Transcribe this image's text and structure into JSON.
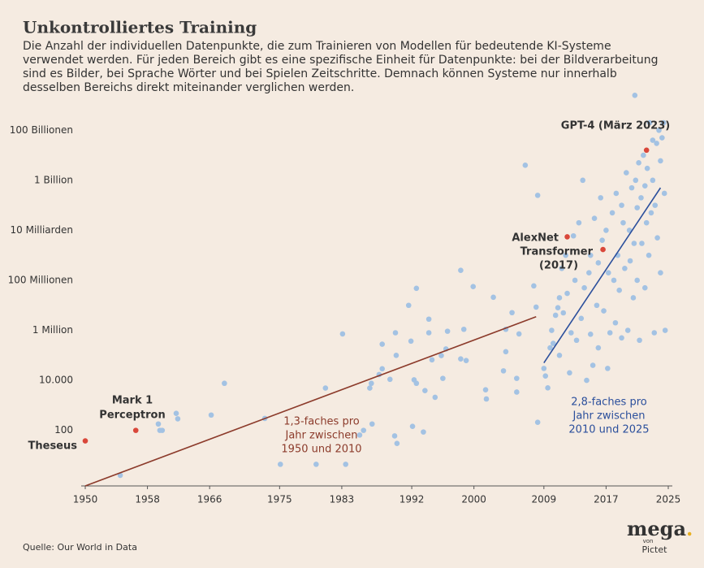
{
  "chart_data": {
    "type": "scatter",
    "title": "Unkontrolliertes Training",
    "subtitle": [
      "Die Anzahl der individuellen Datenpunkte, die zum Trainieren von Modellen für bedeutende KI-Systeme",
      "verwendet werden. Für jeden Bereich gibt es eine spezifische Einheit für Datenpunkte: bei der Bildverarbeitung",
      "sind es Bilder, bei  Sprache Wörter und bei Spielen Zeitschritte. Demnach können Systeme nur innerhalb",
      "desselben Bereichs direkt miteinander verglichen werden."
    ],
    "source": "Quelle: Our World in Data",
    "logo": {
      "word": "mega",
      "dot": ".",
      "by": "von",
      "brand": "Pictet"
    },
    "log_y": true,
    "xlim": [
      1950,
      2025
    ],
    "xticks": [
      1950,
      1958,
      1966,
      1975,
      1983,
      1992,
      2000,
      2009,
      2017,
      2025
    ],
    "ylim": [
      0.6,
      4000000000000000.0
    ],
    "yticks": [
      100,
      {
        "value": 10000,
        "label": "10.000"
      },
      {
        "value": 1000000,
        "label": "1 Million"
      },
      {
        "value": 100000000,
        "label": "100 Millionen"
      },
      {
        "value": 10000000000,
        "label": "10 Milliarden"
      },
      {
        "value": 1000000000000,
        "label": "1 Billion"
      },
      {
        "value": 100000000000000,
        "label": "100 Billionen"
      }
    ],
    "series": [
      {
        "color": "#a3c2e3",
        "x": [
          1954.5,
          1959.4,
          1959.6,
          1959.9,
          1961.7,
          1961.9,
          1966.2,
          1967.9,
          1973.1,
          1975.1,
          1979.7,
          1983.5,
          1980.9,
          1983.1,
          1985.3,
          1985.8,
          1986.9,
          1986.6,
          1986.8,
          1987.8,
          1988.2,
          1988.2,
          1989.2,
          1989.9,
          1990,
          1989.8,
          1990.1,
          1991.6,
          1991.9,
          1992.1,
          1992.3,
          1992.6,
          1992.6,
          1993.5,
          1993.7,
          1994.2,
          1994.2,
          1994.6,
          1995,
          1995.8,
          1996,
          1996.4,
          1996.6,
          1998.3,
          1998.3,
          1998.7,
          1999,
          1999.9,
          2001.5,
          2001.6,
          2002.5,
          2003.8,
          2004.1,
          2004.1,
          2004.9,
          2005.5,
          2005.5,
          2005.8,
          2006.6,
          2007.7,
          2008,
          2008.2,
          2008.2,
          2009,
          2009.2,
          2009.5,
          2009.8,
          2010,
          2010.2,
          2010.5,
          2010.8,
          2011,
          2011,
          2011.3,
          2011.5,
          2011.8,
          2012,
          2012.3,
          2012.5,
          2012.8,
          2013,
          2013.2,
          2013.5,
          2013.8,
          2014,
          2014.2,
          2014.5,
          2014.8,
          2015,
          2015,
          2015.3,
          2015.5,
          2015.8,
          2016,
          2016,
          2016.3,
          2016.5,
          2016.7,
          2017,
          2017.2,
          2017.3,
          2017.5,
          2017.8,
          2018,
          2018.2,
          2018.3,
          2018.5,
          2018.7,
          2019,
          2019,
          2019.2,
          2019.4,
          2019.6,
          2019.8,
          2020,
          2020.1,
          2020.3,
          2020.5,
          2020.6,
          2020.7,
          2020.8,
          2021,
          2021,
          2021.2,
          2021.3,
          2021.5,
          2021.6,
          2021.8,
          2022,
          2022,
          2022.2,
          2022.3,
          2022.5,
          2022.6,
          2022.8,
          2023,
          2023,
          2023.2,
          2023.3,
          2023.5,
          2023.6,
          2023.8,
          2024,
          2024,
          2024.2,
          2024.4,
          2024.5,
          2024.6
        ],
        "values": [
          1.6,
          180,
          100,
          100,
          480,
          290,
          410,
          7600,
          300,
          4.4,
          4.4,
          4.4,
          4900,
          720000,
          65,
          100,
          180,
          4900,
          7600,
          17000,
          29000,
          280000,
          11000,
          800000,
          100000,
          60,
          30,
          10000000,
          370000,
          145,
          10500,
          7600,
          48000000,
          86,
          3900,
          2800000,
          800000,
          66000,
          2100,
          98000,
          12000,
          180000,
          920000,
          250000000,
          72000,
          1100000,
          62000,
          56000000,
          4200,
          1800,
          21000000,
          24000,
          140000,
          1100000,
          5100000,
          12000,
          3400,
          720000,
          4000000000000.0,
          60000000.0,
          8500000.0,
          250000000000.0,
          210,
          30000.0,
          15000.0,
          5000.0,
          200000.0,
          1000000.0,
          300000.0,
          4000000.0,
          8000000.0,
          20000000.0,
          100000.0,
          300000000.0,
          5000000.0,
          1000000000.0,
          30000000.0,
          20000.0,
          800000.0,
          6000000000.0,
          100000000.0,
          400000.0,
          20000000000.0,
          3000000.0,
          1000000000000.0,
          50000000.0,
          10000.0,
          200000000.0,
          700000.0,
          1000000000.0,
          40000.0,
          30000000000.0,
          10000000.0,
          200000.0,
          500000000.0,
          200000000000.0,
          4000000000.0,
          6000000.0,
          10000000000.0,
          30000.0,
          200000000.0,
          800000.0,
          50000000000.0,
          100000000.0,
          2000000.0,
          300000000000.0,
          1000000000.0,
          40000000.0,
          100000000000.0,
          500000.0,
          20000000000.0,
          300000000.0,
          2000000000000.0,
          1000000.0,
          10000000000.0,
          600000000.0,
          500000000000.0,
          20000000.0,
          3000000000.0,
          2500000000000000.0,
          1000000000000.0,
          80000000000.0,
          100000000.0,
          5000000000000.0,
          400000.0,
          200000000000.0,
          3000000000.0,
          10000000000000.0,
          600000000000.0,
          50000000.0,
          20000000000.0,
          3000000000000.0,
          1000000000.0,
          200000000000000.0,
          50000000000.0,
          1000000000000.0,
          40000000000000.0,
          800000.0,
          100000000000.0,
          30000000000000.0,
          5000000000.0,
          100000000000000.0,
          6000000000000.0,
          200000000.0,
          50000000000000.0,
          200000000000000.0,
          300000000000.0,
          1000000.0
        ]
      }
    ],
    "highlights": {
      "color": "#d9473a",
      "x": [
        1950,
        1956.5,
        2012,
        2016.6,
        2022.2
      ],
      "values": [
        38,
        100,
        5500000000.0,
        1700000000.0,
        16000000000000.0
      ],
      "labels": [
        [
          "Theseus"
        ],
        [
          "Mark 1",
          "Perceptron"
        ],
        [
          "AlexNet"
        ],
        [
          "Transformer",
          "(2017)"
        ],
        [
          "GPT-4 (März 2023)"
        ]
      ]
    },
    "trend_lines": [
      {
        "color": "#8c3b2b",
        "x": [
          1950,
          2008
        ],
        "values": [
          0.6,
          3500000.0
        ],
        "label": [
          "1,3-faches pro",
          "Jahr zwischen",
          "1950 und 2010"
        ]
      },
      {
        "color": "#2b4f9c",
        "x": [
          2009,
          2024
        ],
        "values": [
          50000.0,
          500000000000.0
        ],
        "label": [
          "2,8-faches pro",
          "Jahr zwischen",
          "2010 und 2025"
        ]
      }
    ]
  }
}
